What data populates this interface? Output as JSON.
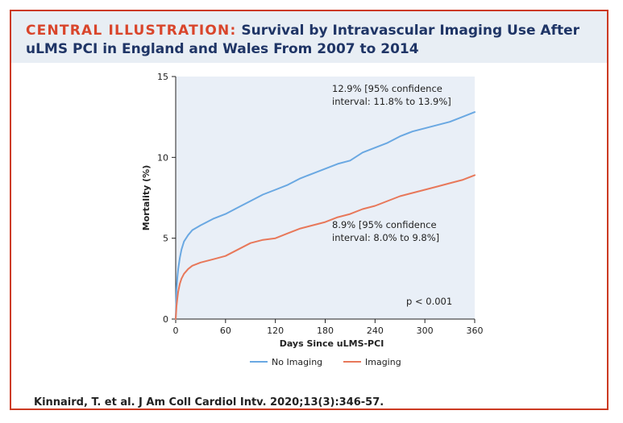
{
  "header": {
    "prefix": "CENTRAL ILLUSTRATION:",
    "title_line1": "Survival by Intravascular Imaging Use After",
    "title_line2": "uLMS PCI in England and Wales From 2007 to 2014"
  },
  "citation": "Kinnaird, T. et al. J Am Coll Cardiol Intv. 2020;13(3):346-57.",
  "colors": {
    "accent": "#d9452b",
    "title": "#1f3566",
    "plot_bg": "#e9eff7",
    "no_imaging": "#6aa8e2",
    "imaging": "#e8785a"
  },
  "chart_data": {
    "type": "line",
    "xlabel": "Days Since uLMS-PCI",
    "ylabel": "Mortality (%)",
    "xlim": [
      0,
      360
    ],
    "ylim": [
      0,
      15
    ],
    "xticks": [
      0,
      60,
      120,
      180,
      240,
      300,
      360
    ],
    "yticks": [
      0,
      5,
      10,
      15
    ],
    "grid": false,
    "legend_position": "bottom-center",
    "series": [
      {
        "name": "No Imaging",
        "color": "#6aa8e2",
        "x": [
          0,
          1,
          2,
          3,
          5,
          7,
          10,
          15,
          20,
          30,
          45,
          60,
          75,
          90,
          105,
          120,
          135,
          150,
          165,
          180,
          195,
          210,
          225,
          240,
          255,
          270,
          285,
          300,
          315,
          330,
          345,
          360
        ],
        "y": [
          0,
          1.8,
          2.6,
          3.1,
          3.8,
          4.3,
          4.8,
          5.2,
          5.5,
          5.8,
          6.2,
          6.5,
          6.9,
          7.3,
          7.7,
          8.0,
          8.3,
          8.7,
          9.0,
          9.3,
          9.6,
          9.8,
          10.3,
          10.6,
          10.9,
          11.3,
          11.6,
          11.8,
          12.0,
          12.2,
          12.5,
          12.8
        ]
      },
      {
        "name": "Imaging",
        "color": "#e8785a",
        "x": [
          0,
          1,
          2,
          3,
          5,
          7,
          10,
          15,
          20,
          30,
          45,
          60,
          75,
          90,
          105,
          120,
          135,
          150,
          165,
          180,
          195,
          210,
          225,
          240,
          255,
          270,
          285,
          300,
          315,
          330,
          345,
          360
        ],
        "y": [
          0,
          0.8,
          1.3,
          1.7,
          2.2,
          2.5,
          2.8,
          3.1,
          3.3,
          3.5,
          3.7,
          3.9,
          4.3,
          4.7,
          4.9,
          5.0,
          5.3,
          5.6,
          5.8,
          6.0,
          6.3,
          6.5,
          6.8,
          7.0,
          7.3,
          7.6,
          7.8,
          8.0,
          8.2,
          8.4,
          8.6,
          8.9
        ]
      }
    ],
    "annotations": {
      "no_imaging_line1": "12.9% [95% confidence",
      "no_imaging_line2": "interval: 11.8% to 13.9%]",
      "imaging_line1": "8.9% [95% confidence",
      "imaging_line2": "interval: 8.0% to 9.8%]",
      "p_value": "p < 0.001"
    }
  }
}
